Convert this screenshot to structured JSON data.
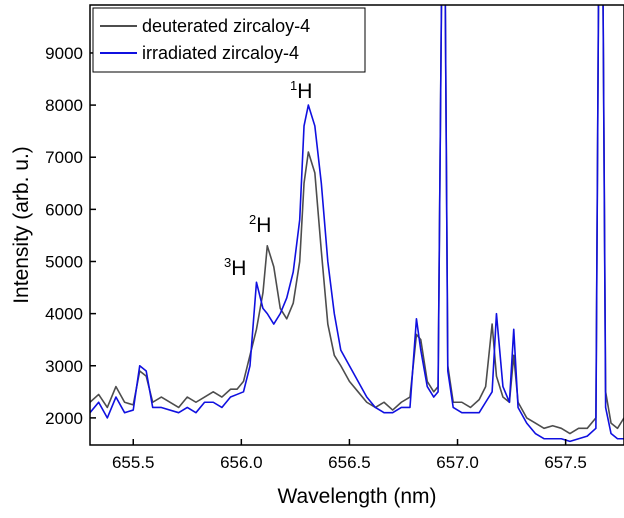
{
  "chart_data": {
    "type": "line",
    "xlabel": "Wavelength (nm)",
    "ylabel": "Intensity (arb. u.)",
    "x": [
      655.3,
      655.34,
      655.38,
      655.42,
      655.46,
      655.5,
      655.53,
      655.56,
      655.59,
      655.63,
      655.71,
      655.75,
      655.79,
      655.83,
      655.87,
      655.91,
      655.95,
      655.98,
      656.01,
      656.04,
      656.07,
      656.1,
      656.12,
      656.15,
      656.18,
      656.21,
      656.24,
      656.27,
      656.29,
      656.31,
      656.34,
      656.37,
      656.4,
      656.43,
      656.46,
      656.5,
      656.54,
      656.58,
      656.62,
      656.66,
      656.7,
      656.74,
      656.78,
      656.81,
      656.83,
      656.86,
      656.89,
      656.91,
      656.93,
      656.94,
      656.955,
      656.98,
      657.02,
      657.06,
      657.1,
      657.13,
      657.16,
      657.18,
      657.21,
      657.24,
      657.26,
      657.28,
      657.32,
      657.36,
      657.4,
      657.44,
      657.48,
      657.52,
      657.56,
      657.6,
      657.64,
      657.655,
      657.67,
      657.685,
      657.71,
      657.74,
      657.77
    ],
    "series": [
      {
        "name": "deuterated zircaloy-4",
        "color": "#4d4d4d",
        "values": [
          2300,
          2450,
          2200,
          2600,
          2300,
          2250,
          2900,
          2800,
          2300,
          2400,
          2200,
          2400,
          2300,
          2400,
          2500,
          2400,
          2550,
          2550,
          2700,
          3200,
          3700,
          4400,
          5300,
          4900,
          4100,
          3900,
          4200,
          5000,
          6500,
          7100,
          6700,
          5200,
          3800,
          3200,
          3000,
          2700,
          2500,
          2300,
          2200,
          2300,
          2150,
          2300,
          2400,
          3600,
          3500,
          2700,
          2500,
          2600,
          12000,
          12000,
          3000,
          2300,
          2300,
          2200,
          2350,
          2600,
          3800,
          2800,
          2400,
          2300,
          3200,
          2300,
          2000,
          1900,
          1800,
          1850,
          1800,
          1700,
          1800,
          1800,
          2000,
          12000,
          12000,
          2500,
          1900,
          1800,
          2000
        ]
      },
      {
        "name": "irradiated zircaloy-4",
        "color": "#1010e0",
        "values": [
          2100,
          2300,
          2000,
          2400,
          2100,
          2150,
          3000,
          2900,
          2200,
          2200,
          2100,
          2200,
          2100,
          2300,
          2300,
          2200,
          2400,
          2450,
          2500,
          3000,
          4600,
          4100,
          4000,
          3800,
          4000,
          4300,
          4800,
          5800,
          7600,
          8000,
          7600,
          6500,
          5000,
          4000,
          3300,
          3000,
          2700,
          2400,
          2200,
          2100,
          2100,
          2200,
          2200,
          3900,
          3300,
          2600,
          2400,
          2500,
          12000,
          12000,
          2900,
          2200,
          2100,
          2100,
          2100,
          2300,
          2500,
          4000,
          2600,
          2300,
          3700,
          2200,
          1900,
          1700,
          1600,
          1600,
          1600,
          1550,
          1600,
          1650,
          1800,
          12000,
          12000,
          2200,
          1700,
          1600,
          1600
        ]
      }
    ],
    "xlim": [
      655.3,
      657.77
    ],
    "xticks": [
      655.5,
      {
        "value": 656,
        "label": "656.0"
      },
      656.5,
      {
        "value": 657,
        "label": "657.0"
      },
      657.5
    ],
    "ylim": [
      1480,
      9920
    ],
    "yticks": [
      2000,
      3000,
      4000,
      5000,
      6000,
      7000,
      8000,
      9000
    ],
    "legend": "upper left",
    "annotations": [
      {
        "sup": "1",
        "text": "H"
      },
      {
        "sup": "2",
        "text": "H"
      },
      {
        "sup": "3",
        "text": "H"
      }
    ]
  }
}
